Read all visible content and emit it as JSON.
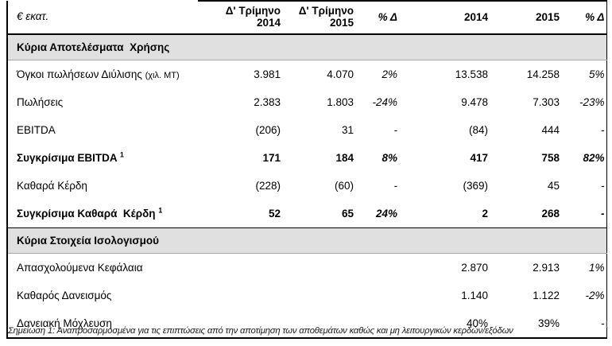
{
  "table": {
    "unit_label": "€ εκατ.",
    "columns": [
      "Δ' Τρίμηνο\n2014",
      "Δ' Τρίμηνο\n2015",
      "% Δ",
      "2014",
      "2015",
      "% Δ"
    ],
    "rows": [
      {
        "type": "section",
        "label": "Κύρια Αποτελέσματα  Χρήσης"
      },
      {
        "type": "data",
        "label": "Όγκοι πωλήσεων Διύλισης",
        "suffix": "(χιλ. ΜΤ)",
        "bold": false,
        "values": [
          "3.981",
          "4.070",
          "2%",
          "13.538",
          "14.258",
          "5%"
        ]
      },
      {
        "type": "data",
        "label": "Πωλήσεις",
        "bold": false,
        "values": [
          "2.383",
          "1.803",
          "-24%",
          "9.478",
          "7.303",
          "-23%"
        ]
      },
      {
        "type": "data",
        "label": "EBITDA",
        "bold": false,
        "values": [
          "(206)",
          "31",
          "-",
          "(84)",
          "444",
          "-"
        ]
      },
      {
        "type": "data",
        "label": "Συγκρίσιμα EBITDA",
        "sup": "1",
        "bold": true,
        "values": [
          "171",
          "184",
          "8%",
          "417",
          "758",
          "82%"
        ]
      },
      {
        "type": "data",
        "label": "Καθαρά Κέρδη",
        "bold": false,
        "values": [
          "(228)",
          "(60)",
          "-",
          "(369)",
          "45",
          "-"
        ]
      },
      {
        "type": "data",
        "label": "Συγκρίσιμα Καθαρά  Κέρδη",
        "sup": "1",
        "bold": true,
        "values": [
          "52",
          "65",
          "24%",
          "2",
          "268",
          "-"
        ]
      },
      {
        "type": "section",
        "label": "Κύρια Στοιχεία Ισολογισμού"
      },
      {
        "type": "data",
        "label": "Απασχολούμενα Κεφάλαια",
        "bold": false,
        "values": [
          "",
          "",
          "",
          "2.870",
          "2.913",
          "1%"
        ]
      },
      {
        "type": "data",
        "label": "Καθαρός Δανεισμός",
        "bold": false,
        "values": [
          "",
          "",
          "",
          "1.140",
          "1.122",
          "-2%"
        ]
      },
      {
        "type": "data",
        "label": "Δανειακή Μόχλευση",
        "bold": false,
        "values": [
          "",
          "",
          "",
          "40%",
          "39%",
          "-"
        ]
      }
    ]
  },
  "footnote": "Σημείωση 1: Αναπροσαρμοσμένα για τις επιπτώσεις από την αποτίμηση των αποθεμάτων καθώς και μη λειτουργικών κερδών/εξόδων",
  "artifact_mark": "[",
  "colors": {
    "section_band": "#e0e0e0",
    "border": "#000000",
    "text": "#000000"
  }
}
